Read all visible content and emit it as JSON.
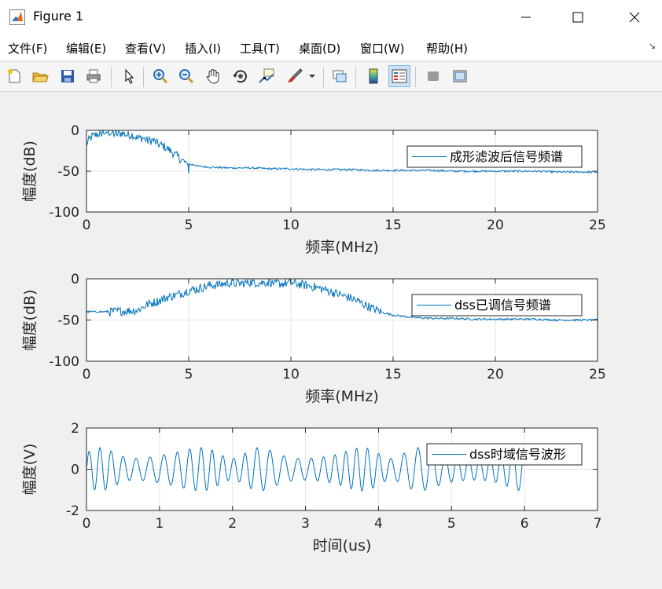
{
  "window": {
    "title": "Figure 1"
  },
  "menu": [
    "文件(F)",
    "编辑(E)",
    "查看(V)",
    "插入(I)",
    "工具(T)",
    "桌面(D)",
    "窗口(W)",
    "帮助(H)"
  ],
  "toolbar": [
    "new-figure",
    "open-file",
    "save",
    "print",
    "edit-plot-pointer",
    "zoom-in",
    "zoom-out",
    "pan",
    "rotate-3d",
    "data-cursor",
    "brush",
    "brush-dropdown",
    "link-plot",
    "insert-colorbar",
    "insert-legend",
    "hide-plot-tools",
    "show-plot-tools"
  ],
  "colors": {
    "line": "#0072bd",
    "grid": "#e6e6e6",
    "axis": "#262626"
  },
  "chart_data": [
    {
      "type": "line",
      "xlabel": "频率(MHz)",
      "ylabel": "幅度(dB)",
      "xlim": [
        0,
        25
      ],
      "ylim": [
        -100,
        0
      ],
      "xticks": [
        "0",
        "5",
        "10",
        "15",
        "20",
        "25"
      ],
      "yticks": [
        "-100",
        "-50",
        "0"
      ],
      "grid": true,
      "legend": "成形滤波后信号频谱",
      "legend_position": "top-right",
      "series": [
        {
          "name": "成形滤波后信号频谱",
          "x": [
            0,
            0.25,
            0.5,
            0.75,
            1,
            1.25,
            1.5,
            1.75,
            2,
            2.25,
            2.5,
            2.75,
            3,
            3.25,
            3.5,
            3.75,
            4,
            4.25,
            4.5,
            4.75,
            5,
            5.25,
            5.5,
            6,
            7,
            8,
            9,
            10,
            11,
            12,
            13,
            14,
            15,
            16,
            17,
            18,
            19,
            20,
            21,
            22,
            23,
            24,
            25
          ],
          "y": [
            -16,
            -8,
            -5,
            -3,
            -2,
            -4,
            -5,
            -3,
            -6,
            -5,
            -10,
            -9,
            -13,
            -12,
            -17,
            -19,
            -23,
            -28,
            -33,
            -38,
            -42,
            -42,
            -44,
            -45,
            -46,
            -46,
            -47,
            -47,
            -48,
            -48,
            -48,
            -49,
            -49,
            -49,
            -49,
            -50,
            -50,
            -50,
            -50,
            -50,
            -51,
            -51,
            -51
          ]
        }
      ]
    },
    {
      "type": "line",
      "xlabel": "频率(MHz)",
      "ylabel": "幅度(dB)",
      "xlim": [
        0,
        25
      ],
      "ylim": [
        -100,
        0
      ],
      "xticks": [
        "0",
        "5",
        "10",
        "15",
        "20",
        "25"
      ],
      "yticks": [
        "-100",
        "-50",
        "0"
      ],
      "grid": true,
      "legend": "dss已调信号频谱",
      "legend_position": "top-right",
      "series": [
        {
          "name": "dss已调信号频谱",
          "x": [
            0,
            1,
            2,
            2.5,
            3,
            3.5,
            4,
            4.5,
            5,
            5.5,
            6,
            6.5,
            7,
            7.5,
            8,
            8.5,
            9,
            9.5,
            10,
            10.5,
            11,
            11.5,
            12,
            12.5,
            13,
            13.5,
            14,
            14.5,
            15,
            16,
            17,
            18,
            19,
            20,
            21,
            22,
            23,
            24,
            25
          ],
          "y": [
            -40,
            -40,
            -39,
            -38,
            -31,
            -27,
            -22,
            -19,
            -14,
            -12,
            -8,
            -7,
            -5,
            -6,
            -4,
            -5,
            -4,
            -6,
            -5,
            -7,
            -9,
            -12,
            -16,
            -20,
            -24,
            -30,
            -36,
            -41,
            -44,
            -47,
            -48,
            -48,
            -49,
            -49,
            -49,
            -49,
            -50,
            -50,
            -50
          ]
        }
      ]
    },
    {
      "type": "line",
      "xlabel": "时间(us)",
      "ylabel": "幅度(V)",
      "xlim": [
        0,
        7
      ],
      "ylim": [
        -2,
        2
      ],
      "xticks": [
        "0",
        "1",
        "2",
        "3",
        "4",
        "5",
        "6",
        "7"
      ],
      "yticks": [
        "-2",
        "0",
        "2"
      ],
      "grid": true,
      "legend": "dss时域信号波形",
      "legend_position": "top-right",
      "series": [
        {
          "name": "dss时域信号波形",
          "x_start": 0,
          "x_end": 6,
          "oscillation_freq_MHz": 6,
          "amplitude_range": [
            -1.1,
            1.1
          ]
        }
      ]
    }
  ]
}
